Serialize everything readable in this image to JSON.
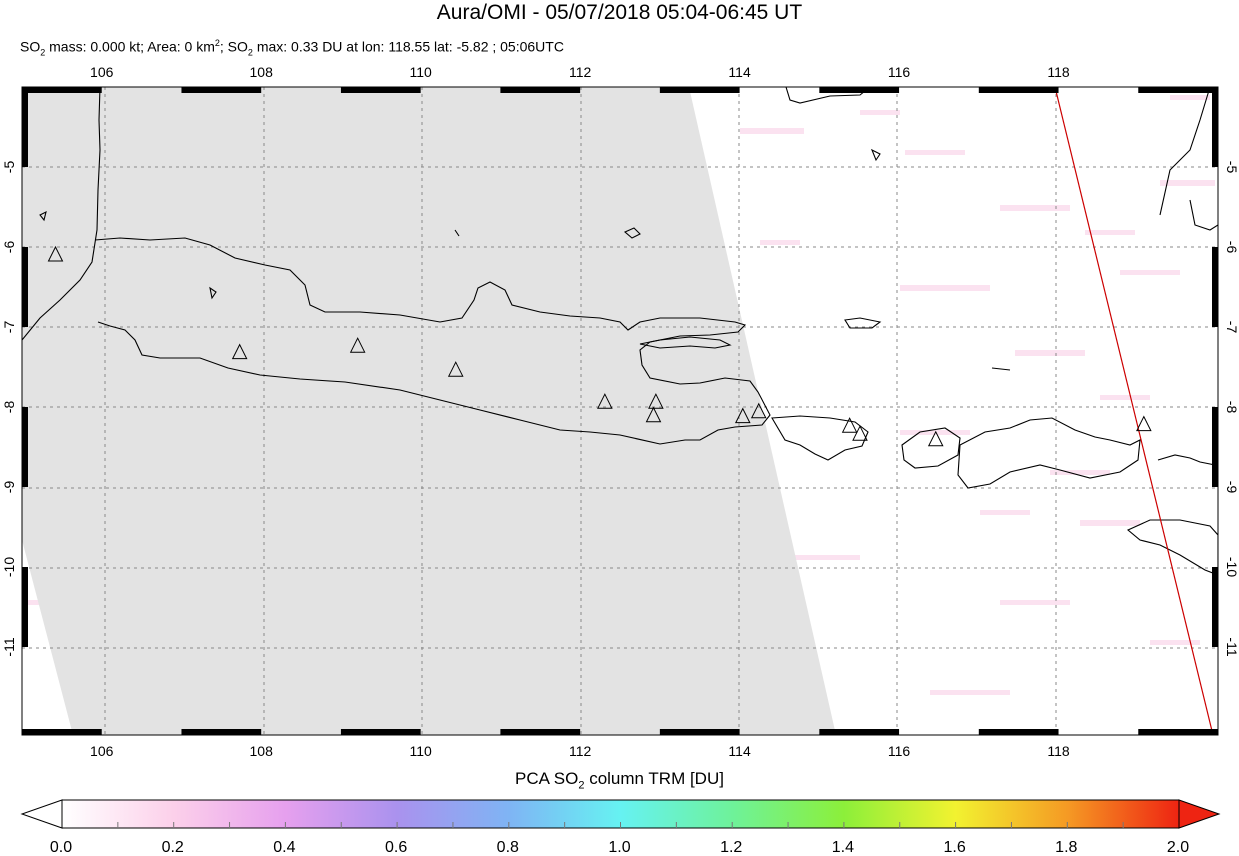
{
  "title": "Aura/OMI - 05/07/2018 05:04-06:45 UT",
  "subtitle": {
    "mass_prefix": "SO",
    "mass_text": " mass: 0.000 kt; Area: 0 km",
    "max_prefix": "; SO",
    "max_text": " max: 0.33 DU at lon: 118.55 lat: -5.82 ; 05:06UTC"
  },
  "map": {
    "lon_ticks": [
      "106",
      "108",
      "110",
      "112",
      "114",
      "116",
      "118"
    ],
    "lat_ticks": [
      "-5",
      "-6",
      "-7",
      "-8",
      "-9",
      "-10",
      "-11"
    ],
    "lon_range": [
      105,
      120
    ],
    "lat_range": [
      -12.1,
      -4.0
    ],
    "volcanoes_lonlat": [
      [
        105.42,
        -6.1
      ],
      [
        107.73,
        -7.32
      ],
      [
        109.21,
        -7.24
      ],
      [
        110.44,
        -7.54
      ],
      [
        112.31,
        -7.94
      ],
      [
        112.95,
        -7.94
      ],
      [
        112.92,
        -8.11
      ],
      [
        114.04,
        -8.12
      ],
      [
        114.24,
        -8.06
      ],
      [
        115.38,
        -8.24
      ],
      [
        115.51,
        -8.34
      ],
      [
        116.46,
        -8.41
      ],
      [
        119.07,
        -8.22
      ]
    ],
    "colors": {
      "swath_gray": "#e3e3e3",
      "coast": "#000000",
      "grid": "#888888",
      "swath_edge": "#cc0000"
    }
  },
  "colorbar": {
    "title_prefix": "PCA SO",
    "title_suffix": " column TRM [DU]",
    "labels": [
      "0.0",
      "0.2",
      "0.4",
      "0.6",
      "0.8",
      "1.0",
      "1.2",
      "1.4",
      "1.6",
      "1.8",
      "2.0"
    ],
    "range": [
      0.0,
      2.0
    ],
    "stops": [
      "#ffffff",
      "#fcd0ea",
      "#e6a0ee",
      "#aa92ee",
      "#7fb4f4",
      "#66f2f2",
      "#6ef29a",
      "#8cef3a",
      "#f2f230",
      "#f59a24",
      "#ee2412"
    ]
  }
}
